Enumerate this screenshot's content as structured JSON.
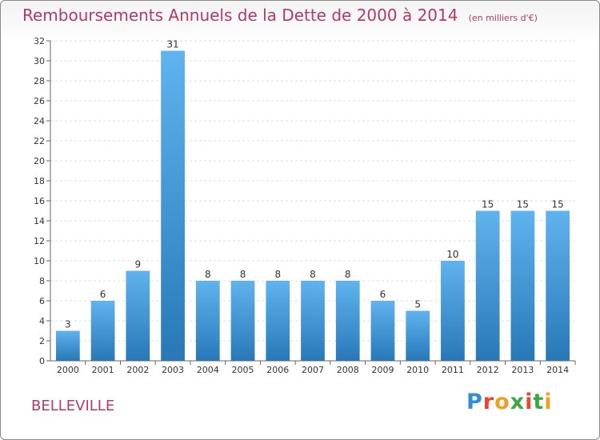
{
  "header": {
    "title": "Remboursements Annuels de la Dette de 2000 à 2014",
    "subtitle": "(en milliers d'€)"
  },
  "footer": {
    "place": "BELLEVILLE",
    "logo_text": "Proxiti"
  },
  "colors": {
    "title": "#b5386a",
    "bar_top": "#5fb3ee",
    "bar_bottom": "#2878b8"
  },
  "chart_data": {
    "type": "bar",
    "title": "Remboursements Annuels de la Dette de 2000 à 2014",
    "subtitle": "(en milliers d'€)",
    "categories": [
      "2000",
      "2001",
      "2002",
      "2003",
      "2004",
      "2005",
      "2006",
      "2007",
      "2008",
      "2009",
      "2010",
      "2011",
      "2012",
      "2013",
      "2014"
    ],
    "values": [
      3,
      6,
      9,
      31,
      8,
      8,
      8,
      8,
      8,
      6,
      5,
      10,
      15,
      15,
      15
    ],
    "ylim": [
      0,
      32
    ],
    "yticks": [
      0,
      2,
      4,
      6,
      8,
      10,
      12,
      14,
      16,
      18,
      20,
      22,
      24,
      26,
      28,
      30,
      32
    ],
    "grid": true,
    "legend": "none"
  }
}
